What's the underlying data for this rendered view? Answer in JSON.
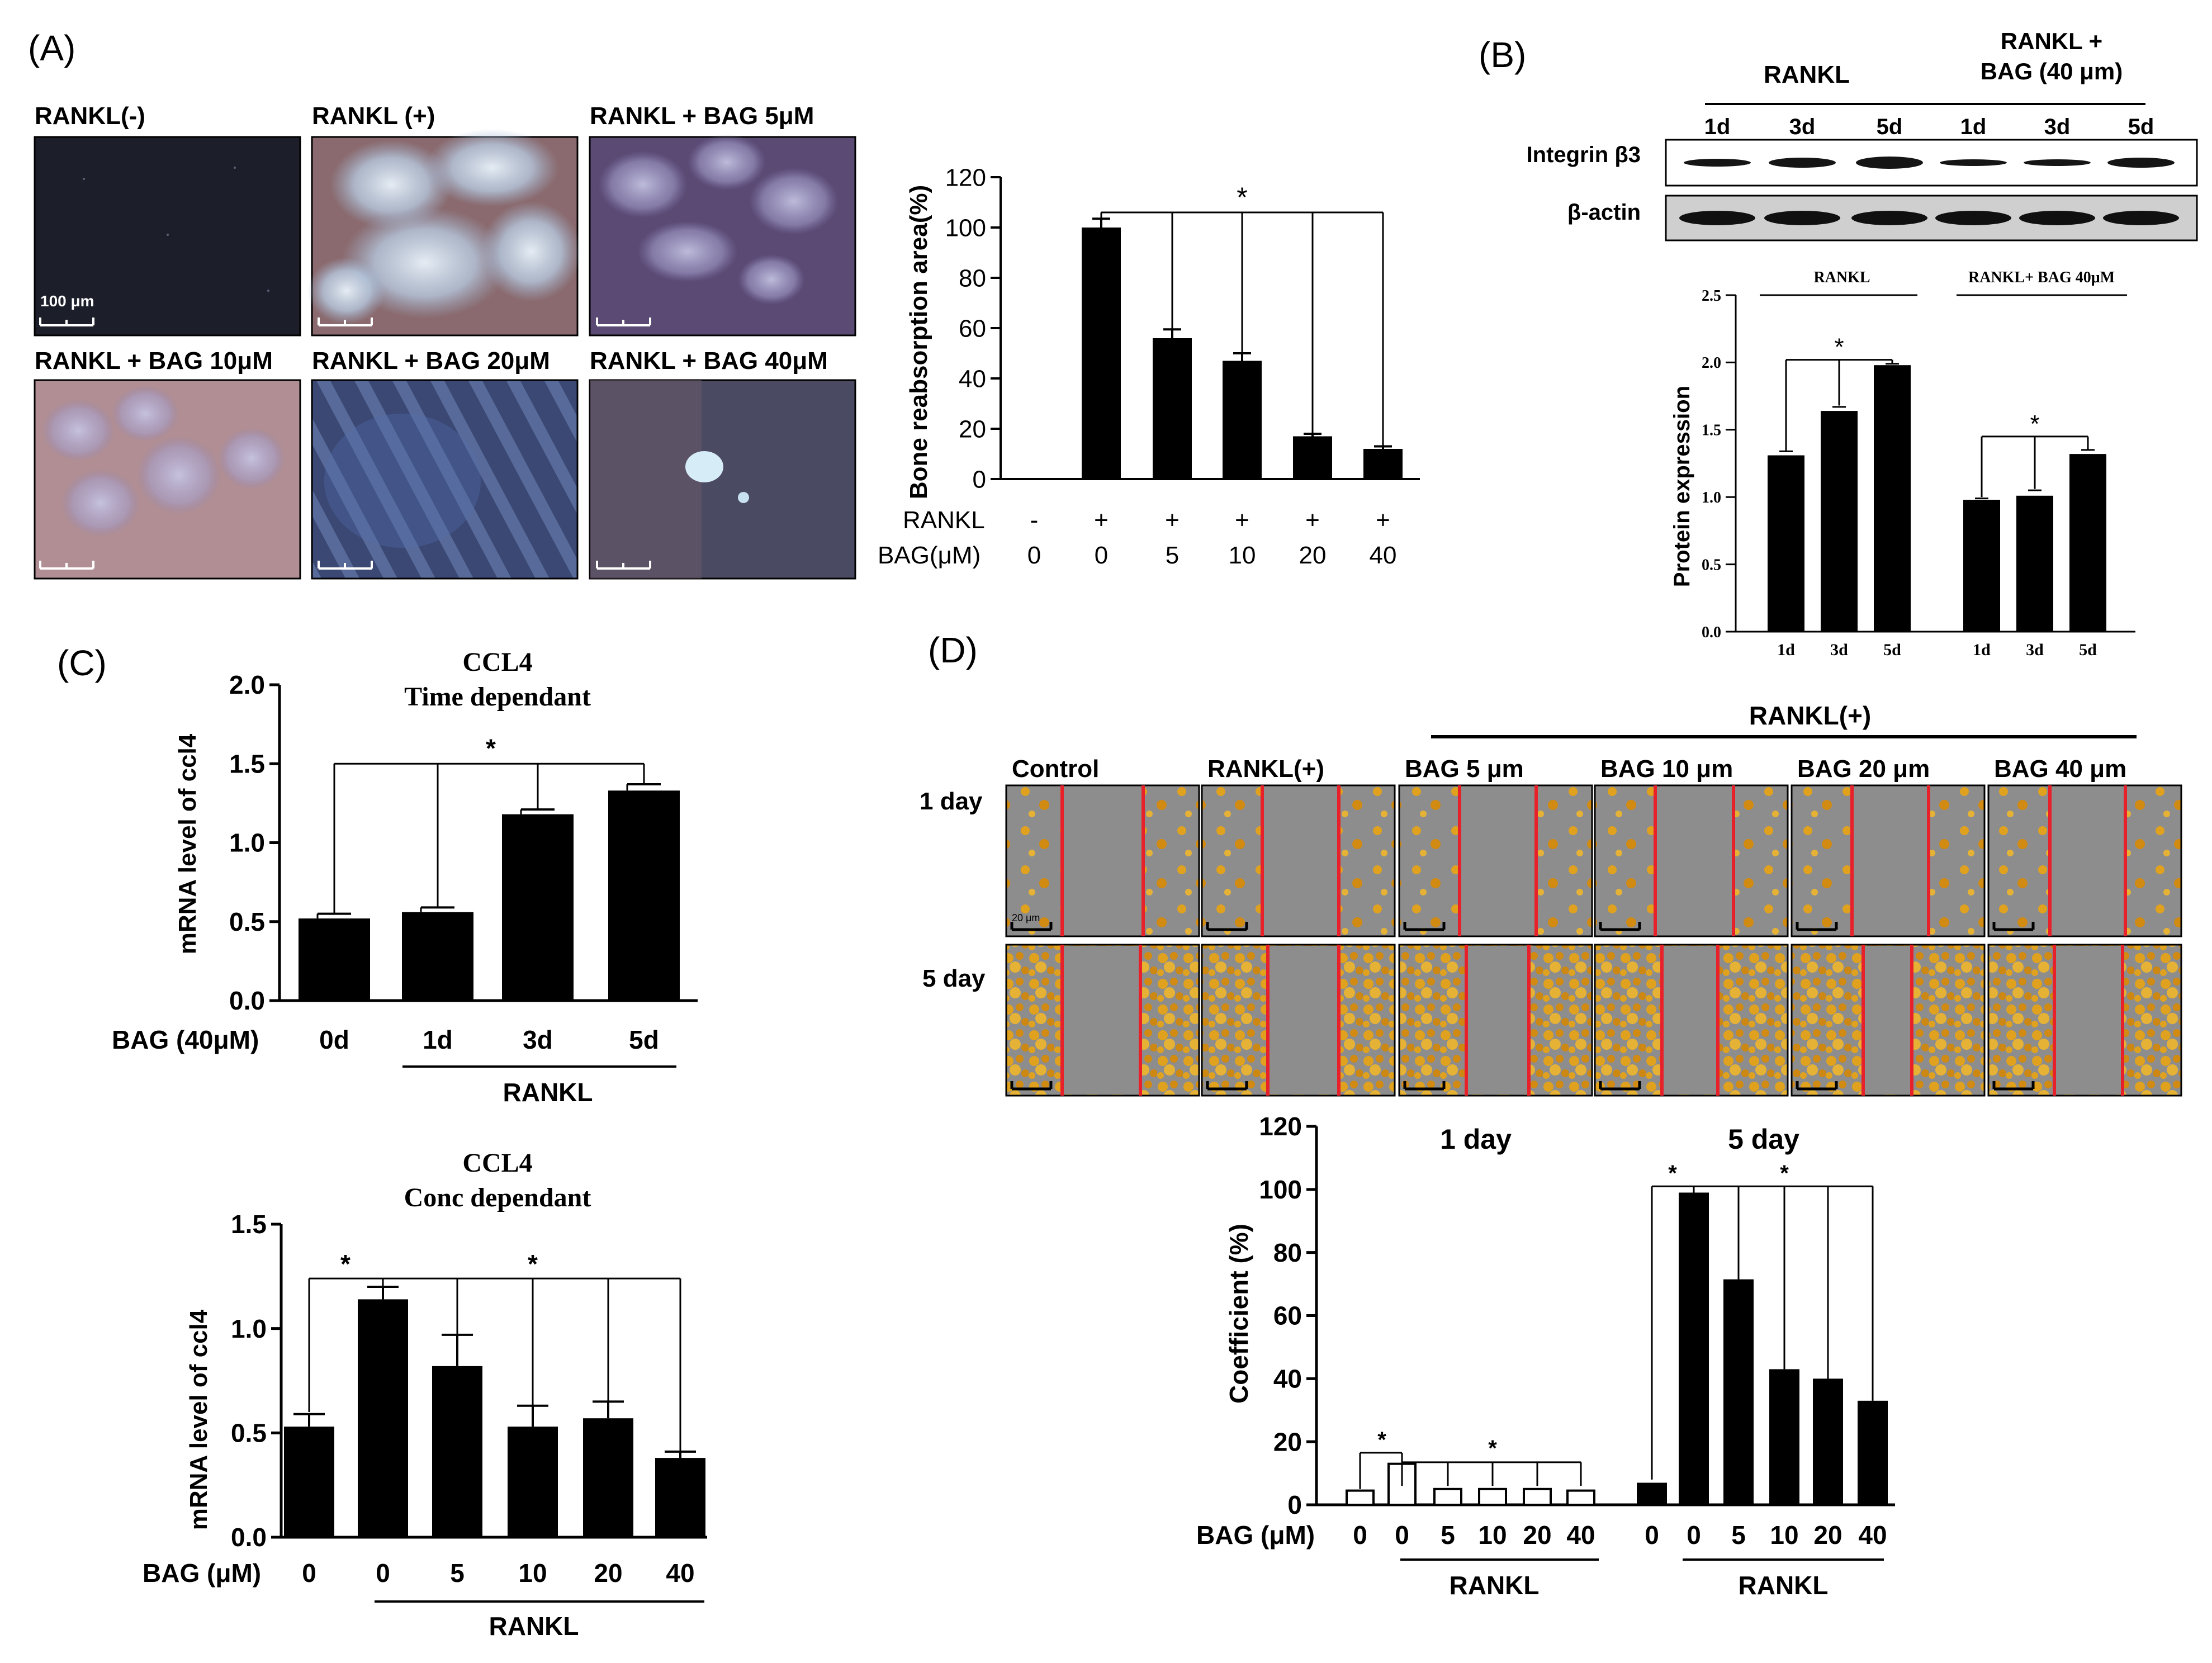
{
  "panels": {
    "A": {
      "label": "(A)",
      "image_labels": [
        "RANKL(-)",
        "RANKL (+)",
        "RANKL + BAG 5μM",
        "RANKL + BAG 10μM",
        "RANKL + BAG 20μM",
        "RANKL + BAG 40μM"
      ],
      "scale_bar_label": "100 μm",
      "row_labels": {
        "rankl": "RANKL",
        "bag": "BAG(μM)"
      }
    },
    "B": {
      "label": "(B)",
      "blot_headers": {
        "group1": "RANKL",
        "group2_line1": "RANKL +",
        "group2_line2": "BAG (40 μm)"
      },
      "blot_lanes": [
        "1d",
        "3d",
        "5d",
        "1d",
        "3d",
        "5d"
      ],
      "blot_rows": [
        "Integrin β3",
        "β-actin"
      ],
      "chart_headers": {
        "group1": "RANKL",
        "group2": "RANKL+ BAG 40μM"
      }
    },
    "C": {
      "label": "(C)",
      "time": {
        "title1": "CCL4",
        "title2": "Time dependant",
        "xlabel_prefix": "BAG (40μM)",
        "group_label": "RANKL"
      },
      "conc": {
        "title1": "CCL4",
        "title2": "Conc dependant",
        "xlabel_prefix": "BAG (μM)",
        "group_label": "RANKL"
      }
    },
    "D": {
      "label": "(D)",
      "group_header": "RANKL(+)",
      "column_labels": [
        "Control",
        "RANKL(+)",
        "BAG 5 μm",
        "BAG 10 μm",
        "BAG 20 μm",
        "BAG 40 μm"
      ],
      "row_labels": [
        "1 day",
        "5 day"
      ],
      "scale_bar_label": "20 μm",
      "chart": {
        "day1_title": "1 day",
        "day5_title": "5 day",
        "xlabel_prefix": "BAG (μM)",
        "group_label": "RANKL"
      }
    }
  },
  "colors": {
    "bar": "#000000",
    "open_bar": "#ffffff",
    "scratch_line": "#e8202a",
    "cells": "#e0a21e",
    "gap": "#8d8d8d"
  },
  "chart_data": [
    {
      "id": "A_bone",
      "type": "bar",
      "ylabel": "Bone reabsorption area(%)",
      "ylim": [
        0,
        120
      ],
      "yticks": [
        0,
        20,
        40,
        60,
        80,
        100,
        120
      ],
      "rankl": [
        "-",
        "+",
        "+",
        "+",
        "+",
        "+"
      ],
      "categories": [
        "0",
        "0",
        "5",
        "10",
        "20",
        "40"
      ],
      "values": [
        0,
        100,
        56,
        47,
        17,
        12
      ],
      "errors": [
        0,
        3.5,
        3.5,
        3,
        1,
        1
      ],
      "annotations": [
        "*"
      ]
    },
    {
      "id": "B_integrin",
      "type": "bar",
      "ylabel": "Protein expression",
      "ylim": [
        0,
        2.5
      ],
      "yticks": [
        "0.0",
        "0.5",
        "1.0",
        "1.5",
        "2.0",
        "2.5"
      ],
      "categories": [
        "1d",
        "3d",
        "5d",
        "1d",
        "3d",
        "5d"
      ],
      "values": [
        1.31,
        1.64,
        1.98,
        0.98,
        1.01,
        1.32
      ],
      "errors": [
        0.03,
        0.03,
        0.01,
        0.01,
        0.04,
        0.03
      ],
      "annotations": [
        "*",
        "*"
      ]
    },
    {
      "id": "C_time",
      "type": "bar",
      "title": "CCL4 Time dependant",
      "ylabel": "mRNA level of ccl4",
      "ylim": [
        0,
        2.0
      ],
      "yticks": [
        "0.0",
        "0.5",
        "1.0",
        "1.5",
        "2.0"
      ],
      "categories": [
        "0d",
        "1d",
        "3d",
        "5d"
      ],
      "values": [
        0.52,
        0.56,
        1.18,
        1.33
      ],
      "errors": [
        0.03,
        0.03,
        0.03,
        0.04
      ],
      "annotations": [
        "*"
      ]
    },
    {
      "id": "C_conc",
      "type": "bar",
      "title": "CCL4 Conc dependant",
      "ylabel": "mRNA level of ccl4",
      "ylim": [
        0,
        1.5
      ],
      "yticks": [
        "0.0",
        "0.5",
        "1.0",
        "1.5"
      ],
      "categories": [
        "0",
        "0",
        "5",
        "10",
        "20",
        "40"
      ],
      "values": [
        0.53,
        1.14,
        0.82,
        0.53,
        0.57,
        0.38
      ],
      "errors": [
        0.06,
        0.06,
        0.15,
        0.1,
        0.08,
        0.03
      ],
      "annotations": [
        "*",
        "*"
      ]
    },
    {
      "id": "D_coef",
      "type": "bar",
      "ylabel": "Coefficient (%)",
      "ylim": [
        0,
        120
      ],
      "yticks": [
        0,
        20,
        40,
        60,
        80,
        100,
        120
      ],
      "series": [
        {
          "name": "1 day",
          "categories": [
            "0",
            "0",
            "5",
            "10",
            "20",
            "40"
          ],
          "values": [
            4.5,
            13,
            5,
            5,
            5,
            4.5
          ],
          "fill": "open"
        },
        {
          "name": "5 day",
          "categories": [
            "0",
            "0",
            "5",
            "10",
            "20",
            "40"
          ],
          "values": [
            7,
            99,
            71.5,
            43,
            40,
            33
          ],
          "fill": "solid"
        }
      ],
      "annotations": [
        "*",
        "*",
        "*",
        "*"
      ]
    }
  ]
}
